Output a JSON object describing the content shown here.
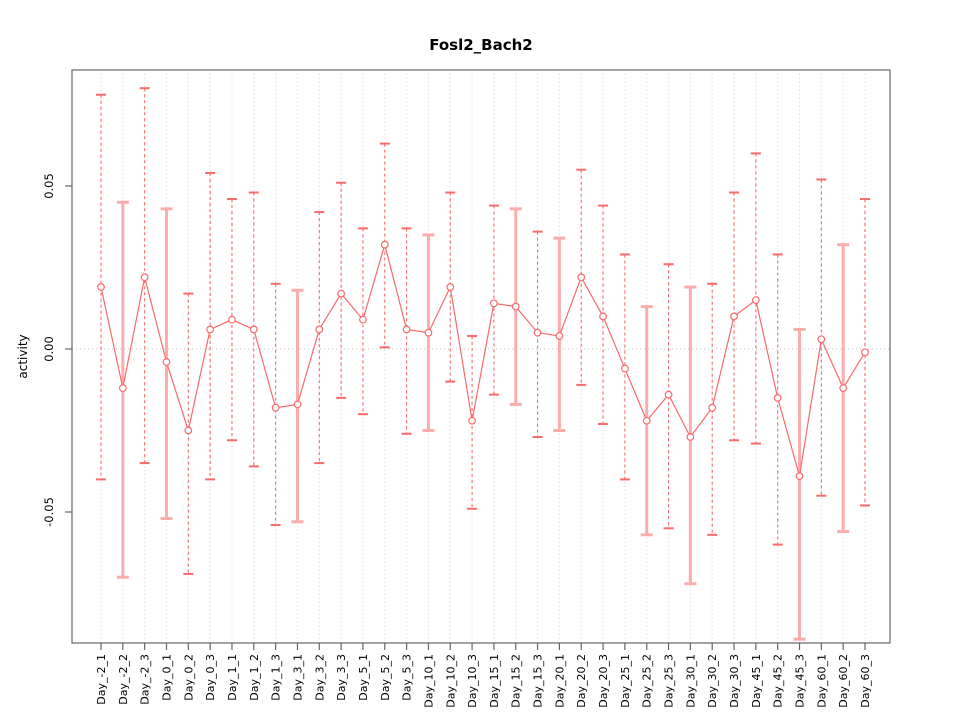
{
  "chart_data": {
    "type": "scatter",
    "subtype": "points-with-error-bars-connected-by-line",
    "title": "Fosl2_Bach2",
    "xlabel": "",
    "ylabel": "activity",
    "ylim": [
      -0.0902,
      0.0856
    ],
    "yticks": [
      0.05,
      0.0,
      -0.05
    ],
    "ytick_labels": [
      "0.05",
      "0.00",
      "-0.05"
    ],
    "zero_reference_line": true,
    "vertical_gridlines": "dotted at every category",
    "legend": "none",
    "categories": [
      "Day_-2_1",
      "Day_-2_2",
      "Day_-2_3",
      "Day_0_1",
      "Day_0_2",
      "Day_0_3",
      "Day_1_1",
      "Day_1_2",
      "Day_1_3",
      "Day_3_1",
      "Day_3_2",
      "Day_3_3",
      "Day_5_1",
      "Day_5_2",
      "Day_5_3",
      "Day_10_1",
      "Day_10_2",
      "Day_10_3",
      "Day_15_1",
      "Day_15_2",
      "Day_15_3",
      "Day_20_1",
      "Day_20_2",
      "Day_20_3",
      "Day_25_1",
      "Day_25_2",
      "Day_25_3",
      "Day_30_1",
      "Day_30_2",
      "Day_30_3",
      "Day_45_1",
      "Day_45_2",
      "Day_45_3",
      "Day_60_1",
      "Day_60_2",
      "Day_60_3"
    ],
    "values": [
      0.019,
      -0.012,
      0.022,
      -0.004,
      -0.025,
      0.006,
      0.009,
      0.006,
      -0.018,
      -0.017,
      0.006,
      0.017,
      0.009,
      0.032,
      0.006,
      0.005,
      0.019,
      -0.022,
      0.014,
      0.013,
      0.005,
      0.004,
      0.022,
      0.01,
      -0.006,
      -0.022,
      -0.014,
      -0.027,
      -0.018,
      0.01,
      0.015,
      -0.015,
      -0.039,
      0.003,
      -0.012,
      -0.001
    ],
    "err_high": [
      0.078,
      0.045,
      0.08,
      0.043,
      0.017,
      0.054,
      0.046,
      0.048,
      0.02,
      0.018,
      0.042,
      0.051,
      0.037,
      0.063,
      0.037,
      0.035,
      0.048,
      0.004,
      0.044,
      0.043,
      0.036,
      0.034,
      0.055,
      0.044,
      0.029,
      0.013,
      0.026,
      0.019,
      0.02,
      0.048,
      0.06,
      0.029,
      0.006,
      0.052,
      0.032,
      0.046
    ],
    "err_low": [
      -0.04,
      -0.07,
      -0.035,
      -0.052,
      -0.069,
      -0.04,
      -0.028,
      -0.036,
      -0.054,
      -0.053,
      -0.035,
      -0.015,
      -0.02,
      0.0005,
      -0.026,
      -0.025,
      -0.01,
      -0.049,
      -0.014,
      -0.017,
      -0.027,
      -0.025,
      -0.011,
      -0.023,
      -0.04,
      -0.057,
      -0.055,
      -0.072,
      -0.057,
      -0.028,
      -0.029,
      -0.06,
      -0.089,
      -0.045,
      -0.056,
      -0.048
    ],
    "bar_styles": [
      "red",
      "pink",
      "red",
      "pink",
      "red",
      "red",
      "red",
      "red",
      "red",
      "pink",
      "red",
      "red",
      "red",
      "red",
      "red",
      "pink",
      "red",
      "red",
      "red",
      "pink",
      "red",
      "pink",
      "red",
      "red",
      "red",
      "pink",
      "red",
      "pink",
      "red",
      "red",
      "red",
      "red",
      "pink",
      "red",
      "pink",
      "red"
    ],
    "colors": {
      "point_and_line": "#f96a6a",
      "errorbar_red": "#f96a6a",
      "errorbar_pink": "#fbadad",
      "gridline": "#d6d6d6",
      "zero_line": "#c4c4c4",
      "axis_box": "#666666",
      "text": "#000000"
    }
  }
}
